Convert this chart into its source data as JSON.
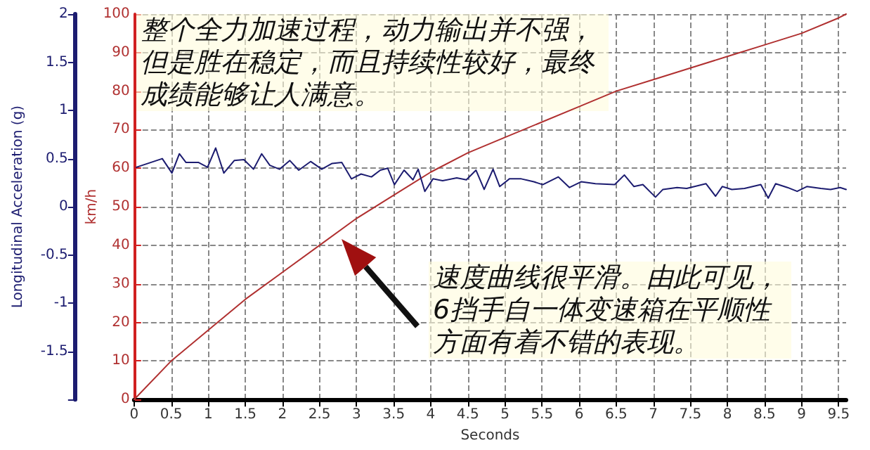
{
  "chart_data": {
    "type": "line",
    "xlabel": "Seconds",
    "ylabel": "km/h",
    "y2label": "Longitudinal Acceleration (g)",
    "annotations": [
      "整个全力加速过程，动力输出并不强，但是胜在稳定，而且持续性较好，最终成绩能够让人满意。",
      "速度曲线很平滑。由此可见，6挡手自一体变速箱在平顺性方面有着不错的表现。"
    ],
    "xlim": [
      0,
      9.6
    ],
    "xticks": [
      0,
      0.5,
      1,
      1.5,
      2,
      2.5,
      3,
      3.5,
      4,
      4.5,
      5,
      5.5,
      6,
      6.5,
      7,
      7.5,
      8,
      8.5,
      9,
      9.5
    ],
    "ylim": [
      0,
      100
    ],
    "yticks": [
      0,
      10,
      20,
      30,
      40,
      50,
      60,
      70,
      80,
      90,
      100
    ],
    "y2lim": [
      -2,
      2
    ],
    "y2ticks": [
      {
        "value": -2,
        "label": null
      },
      -1.5,
      -1,
      -0.5,
      0,
      0.5,
      1,
      1.5,
      2
    ],
    "grid": true,
    "marker": "none",
    "line_style": "solid",
    "series": [
      {
        "color": "#b03030",
        "x": [
          0,
          0.5,
          1,
          1.5,
          2,
          2.5,
          3,
          3.5,
          4,
          4.5,
          5,
          5.5,
          6,
          6.5,
          7,
          7.5,
          8,
          8.5,
          9,
          9.5,
          9.6
        ],
        "values": [
          0,
          10,
          18,
          26,
          33,
          40,
          47,
          53,
          59,
          64,
          68,
          72,
          76,
          80,
          83,
          86,
          89,
          92,
          95,
          99,
          100
        ]
      },
      {
        "color": "#1c1c70",
        "axis": "y2",
        "x": [
          0.03,
          0.38,
          0.51,
          0.61,
          0.7,
          0.87,
          0.99,
          1.1,
          1.21,
          1.35,
          1.48,
          1.61,
          1.72,
          1.83,
          1.96,
          2.1,
          2.22,
          2.38,
          2.53,
          2.67,
          2.8,
          2.93,
          3.06,
          3.2,
          3.32,
          3.42,
          3.51,
          3.64,
          3.76,
          3.83,
          3.92,
          4.03,
          4.16,
          4.35,
          4.48,
          4.61,
          4.72,
          4.84,
          4.93,
          5.06,
          5.22,
          5.39,
          5.51,
          5.72,
          5.87,
          6.03,
          6.22,
          6.48,
          6.61,
          6.74,
          6.86,
          7.03,
          7.13,
          7.32,
          7.45,
          7.71,
          7.84,
          7.93,
          8.06,
          8.23,
          8.45,
          8.55,
          8.65,
          8.81,
          8.94,
          9.07,
          9.26,
          9.39,
          9.52,
          9.6
        ],
        "values": [
          0.41,
          0.5,
          0.35,
          0.55,
          0.46,
          0.46,
          0.41,
          0.61,
          0.35,
          0.48,
          0.49,
          0.39,
          0.55,
          0.43,
          0.39,
          0.48,
          0.38,
          0.47,
          0.39,
          0.45,
          0.46,
          0.29,
          0.34,
          0.31,
          0.38,
          0.4,
          0.23,
          0.38,
          0.28,
          0.39,
          0.16,
          0.29,
          0.27,
          0.3,
          0.28,
          0.38,
          0.18,
          0.39,
          0.21,
          0.29,
          0.29,
          0.26,
          0.23,
          0.31,
          0.2,
          0.26,
          0.24,
          0.23,
          0.33,
          0.21,
          0.23,
          0.1,
          0.18,
          0.2,
          0.19,
          0.24,
          0.11,
          0.21,
          0.18,
          0.19,
          0.23,
          0.09,
          0.24,
          0.2,
          0.16,
          0.21,
          0.19,
          0.18,
          0.2,
          0.18
        ]
      }
    ]
  }
}
